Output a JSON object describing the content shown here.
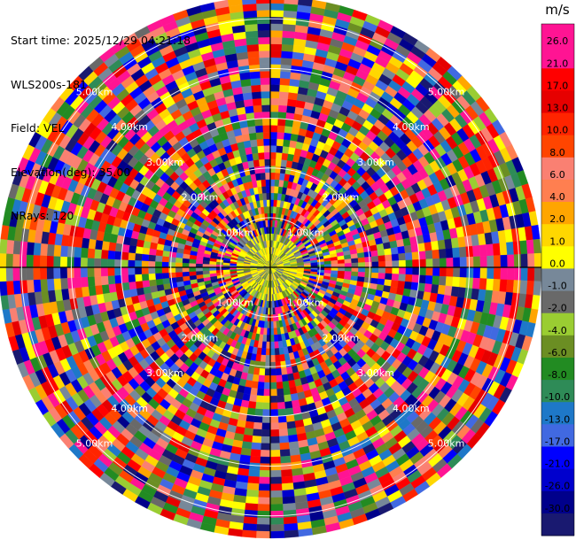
{
  "info": {
    "start_time": "Start time: 2025/12/29 04:21:18",
    "site": "WLS200s-181",
    "field": "Field: VEL",
    "elevation": "Elevation(deg): 35.00",
    "nrays": "NRays: 120"
  },
  "chart_data": {
    "type": "heatmap",
    "subtype": "polar-ppi",
    "nrays": 120,
    "range_rings": [
      {
        "label": "1.00km",
        "km": 1
      },
      {
        "label": "2.00km",
        "km": 2
      },
      {
        "label": "3.00km",
        "km": 3
      },
      {
        "label": "4.00km",
        "km": 4
      },
      {
        "label": "5.00km",
        "km": 5
      }
    ],
    "max_range_km": 5.45,
    "colorbar": {
      "unit": "m/s",
      "ticks": [
        "26.0",
        "21.0",
        "17.0",
        "13.0",
        "10.0",
        "8.0",
        "6.0",
        "4.0",
        "2.0",
        "1.0",
        "0.0",
        "-1.0",
        "-2.0",
        "-4.0",
        "-6.0",
        "-8.0",
        "-10.0",
        "-13.0",
        "-17.0",
        "-21.0",
        "-26.0",
        "-30.0"
      ],
      "colors": [
        "#ff1493",
        "#ff1493",
        "#ff0000",
        "#e60000",
        "#ff2400",
        "#ff4500",
        "#fa8072",
        "#ff7f50",
        "#ffa500",
        "#ffd700",
        "#ffff00",
        "#778899",
        "#696969",
        "#9acd32",
        "#6b8e23",
        "#228b22",
        "#2e8b57",
        "#1e78c8",
        "#4169e1",
        "#0000ff",
        "#0000cd",
        "#00008b",
        "#191970"
      ]
    }
  }
}
